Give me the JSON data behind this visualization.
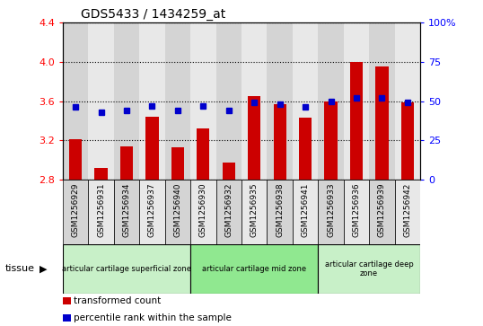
{
  "title": "GDS5433 / 1434259_at",
  "samples": [
    "GSM1256929",
    "GSM1256931",
    "GSM1256934",
    "GSM1256937",
    "GSM1256940",
    "GSM1256930",
    "GSM1256932",
    "GSM1256935",
    "GSM1256938",
    "GSM1256941",
    "GSM1256933",
    "GSM1256936",
    "GSM1256939",
    "GSM1256942"
  ],
  "transformed_count": [
    3.21,
    2.92,
    3.14,
    3.44,
    3.13,
    3.32,
    2.97,
    3.65,
    3.57,
    3.43,
    3.6,
    4.0,
    3.95,
    3.59
  ],
  "percentile_rank": [
    46,
    43,
    44,
    47,
    44,
    47,
    44,
    49,
    48,
    46,
    50,
    52,
    52,
    49
  ],
  "ylim_left": [
    2.8,
    4.4
  ],
  "ylim_right": [
    0,
    100
  ],
  "yticks_left": [
    2.8,
    3.2,
    3.6,
    4.0,
    4.4
  ],
  "yticks_right": [
    0,
    25,
    50,
    75,
    100
  ],
  "ytick_labels_right": [
    "0",
    "25",
    "50",
    "75",
    "100%"
  ],
  "bar_color": "#cc0000",
  "dot_color": "#0000cc",
  "bar_width": 0.5,
  "groups": [
    {
      "label": "articular cartilage superficial zone",
      "start": 0,
      "end": 5,
      "color": "#c8f0c8"
    },
    {
      "label": "articular cartilage mid zone",
      "start": 5,
      "end": 10,
      "color": "#90e890"
    },
    {
      "label": "articular cartilage deep\nzone",
      "start": 10,
      "end": 14,
      "color": "#c8f0c8"
    }
  ],
  "tissue_label": "tissue",
  "legend_items": [
    {
      "color": "#cc0000",
      "label": "transformed count"
    },
    {
      "color": "#0000cc",
      "label": "percentile rank within the sample"
    }
  ],
  "col_bg_even": "#d4d4d4",
  "col_bg_odd": "#e8e8e8",
  "plot_bg_color": "#ffffff"
}
